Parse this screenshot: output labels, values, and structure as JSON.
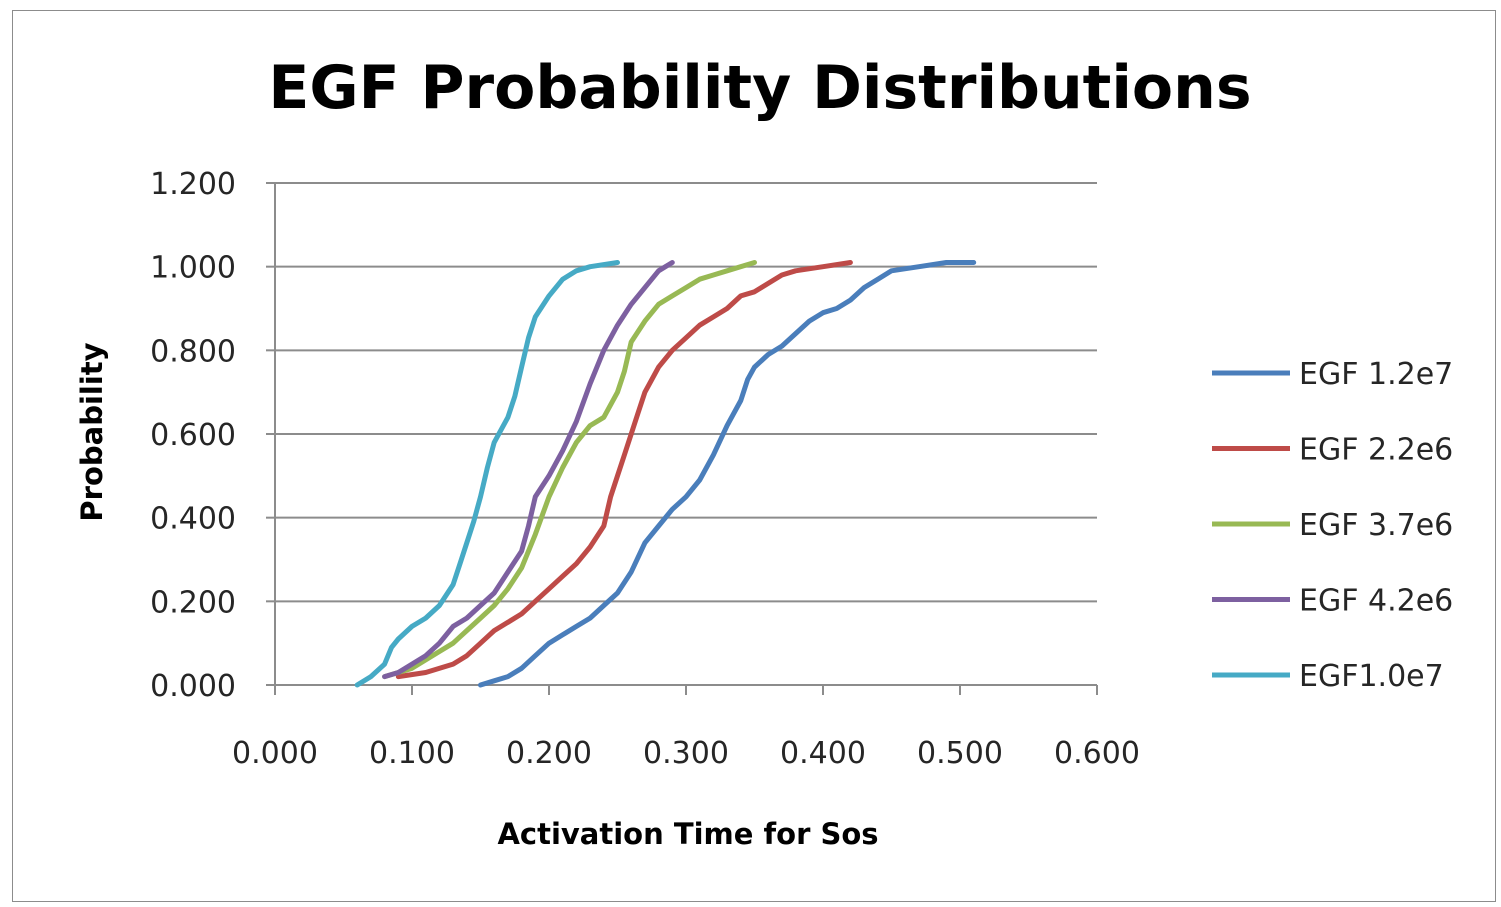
{
  "chart_data": {
    "type": "line",
    "title": "EGF Probability Distributions",
    "xlabel": "Activation Time for Sos",
    "ylabel": "Probability",
    "xlim": [
      0,
      0.6
    ],
    "ylim": [
      0,
      1.2
    ],
    "x_ticks": [
      "0.000",
      "0.100",
      "0.200",
      "0.300",
      "0.400",
      "0.500",
      "0.600"
    ],
    "y_ticks": [
      "0.000",
      "0.200",
      "0.400",
      "0.600",
      "0.800",
      "1.000",
      "1.200"
    ],
    "grid": true,
    "legend_position": "right",
    "series": [
      {
        "name": "EGF 1.2e7",
        "color": "#4a7ebb",
        "points": [
          [
            0.15,
            0.0
          ],
          [
            0.16,
            0.01
          ],
          [
            0.17,
            0.02
          ],
          [
            0.18,
            0.04
          ],
          [
            0.19,
            0.07
          ],
          [
            0.2,
            0.1
          ],
          [
            0.21,
            0.12
          ],
          [
            0.22,
            0.14
          ],
          [
            0.23,
            0.16
          ],
          [
            0.24,
            0.19
          ],
          [
            0.25,
            0.22
          ],
          [
            0.26,
            0.27
          ],
          [
            0.27,
            0.34
          ],
          [
            0.28,
            0.38
          ],
          [
            0.29,
            0.42
          ],
          [
            0.3,
            0.45
          ],
          [
            0.31,
            0.49
          ],
          [
            0.32,
            0.55
          ],
          [
            0.33,
            0.62
          ],
          [
            0.34,
            0.68
          ],
          [
            0.345,
            0.73
          ],
          [
            0.35,
            0.76
          ],
          [
            0.36,
            0.79
          ],
          [
            0.37,
            0.81
          ],
          [
            0.38,
            0.84
          ],
          [
            0.39,
            0.87
          ],
          [
            0.4,
            0.89
          ],
          [
            0.41,
            0.9
          ],
          [
            0.42,
            0.92
          ],
          [
            0.43,
            0.95
          ],
          [
            0.44,
            0.97
          ],
          [
            0.45,
            0.99
          ],
          [
            0.47,
            1.0
          ],
          [
            0.49,
            1.01
          ],
          [
            0.51,
            1.01
          ]
        ]
      },
      {
        "name": "EGF 2.2e6",
        "color": "#be4b48",
        "points": [
          [
            0.09,
            0.02
          ],
          [
            0.11,
            0.03
          ],
          [
            0.13,
            0.05
          ],
          [
            0.14,
            0.07
          ],
          [
            0.15,
            0.1
          ],
          [
            0.16,
            0.13
          ],
          [
            0.17,
            0.15
          ],
          [
            0.18,
            0.17
          ],
          [
            0.19,
            0.2
          ],
          [
            0.2,
            0.23
          ],
          [
            0.21,
            0.26
          ],
          [
            0.22,
            0.29
          ],
          [
            0.23,
            0.33
          ],
          [
            0.24,
            0.38
          ],
          [
            0.245,
            0.45
          ],
          [
            0.25,
            0.5
          ],
          [
            0.255,
            0.55
          ],
          [
            0.26,
            0.6
          ],
          [
            0.265,
            0.65
          ],
          [
            0.27,
            0.7
          ],
          [
            0.28,
            0.76
          ],
          [
            0.29,
            0.8
          ],
          [
            0.3,
            0.83
          ],
          [
            0.31,
            0.86
          ],
          [
            0.32,
            0.88
          ],
          [
            0.33,
            0.9
          ],
          [
            0.34,
            0.93
          ],
          [
            0.35,
            0.94
          ],
          [
            0.36,
            0.96
          ],
          [
            0.37,
            0.98
          ],
          [
            0.38,
            0.99
          ],
          [
            0.4,
            1.0
          ],
          [
            0.42,
            1.01
          ]
        ]
      },
      {
        "name": "EGF 3.7e6",
        "color": "#98b954",
        "points": [
          [
            0.08,
            0.02
          ],
          [
            0.09,
            0.03
          ],
          [
            0.1,
            0.04
          ],
          [
            0.11,
            0.06
          ],
          [
            0.12,
            0.08
          ],
          [
            0.13,
            0.1
          ],
          [
            0.14,
            0.13
          ],
          [
            0.15,
            0.16
          ],
          [
            0.16,
            0.19
          ],
          [
            0.17,
            0.23
          ],
          [
            0.18,
            0.28
          ],
          [
            0.19,
            0.36
          ],
          [
            0.2,
            0.45
          ],
          [
            0.21,
            0.52
          ],
          [
            0.22,
            0.58
          ],
          [
            0.23,
            0.62
          ],
          [
            0.24,
            0.64
          ],
          [
            0.25,
            0.7
          ],
          [
            0.255,
            0.75
          ],
          [
            0.26,
            0.82
          ],
          [
            0.27,
            0.87
          ],
          [
            0.28,
            0.91
          ],
          [
            0.29,
            0.93
          ],
          [
            0.3,
            0.95
          ],
          [
            0.31,
            0.97
          ],
          [
            0.32,
            0.98
          ],
          [
            0.33,
            0.99
          ],
          [
            0.35,
            1.01
          ]
        ]
      },
      {
        "name": "EGF 4.2e6",
        "color": "#7d60a0",
        "points": [
          [
            0.08,
            0.02
          ],
          [
            0.09,
            0.03
          ],
          [
            0.1,
            0.05
          ],
          [
            0.11,
            0.07
          ],
          [
            0.12,
            0.1
          ],
          [
            0.13,
            0.14
          ],
          [
            0.14,
            0.16
          ],
          [
            0.15,
            0.19
          ],
          [
            0.16,
            0.22
          ],
          [
            0.17,
            0.27
          ],
          [
            0.18,
            0.32
          ],
          [
            0.185,
            0.38
          ],
          [
            0.19,
            0.45
          ],
          [
            0.2,
            0.5
          ],
          [
            0.21,
            0.56
          ],
          [
            0.22,
            0.63
          ],
          [
            0.23,
            0.72
          ],
          [
            0.24,
            0.8
          ],
          [
            0.25,
            0.86
          ],
          [
            0.26,
            0.91
          ],
          [
            0.27,
            0.95
          ],
          [
            0.28,
            0.99
          ],
          [
            0.29,
            1.01
          ]
        ]
      },
      {
        "name": "EGF1.0e7",
        "color": "#46aac5",
        "points": [
          [
            0.06,
            0.0
          ],
          [
            0.07,
            0.02
          ],
          [
            0.08,
            0.05
          ],
          [
            0.085,
            0.09
          ],
          [
            0.09,
            0.11
          ],
          [
            0.1,
            0.14
          ],
          [
            0.11,
            0.16
          ],
          [
            0.12,
            0.19
          ],
          [
            0.13,
            0.24
          ],
          [
            0.135,
            0.29
          ],
          [
            0.14,
            0.34
          ],
          [
            0.145,
            0.39
          ],
          [
            0.15,
            0.45
          ],
          [
            0.155,
            0.52
          ],
          [
            0.16,
            0.58
          ],
          [
            0.17,
            0.64
          ],
          [
            0.175,
            0.69
          ],
          [
            0.18,
            0.76
          ],
          [
            0.185,
            0.83
          ],
          [
            0.19,
            0.88
          ],
          [
            0.2,
            0.93
          ],
          [
            0.21,
            0.97
          ],
          [
            0.22,
            0.99
          ],
          [
            0.23,
            1.0
          ],
          [
            0.25,
            1.01
          ]
        ]
      }
    ]
  }
}
